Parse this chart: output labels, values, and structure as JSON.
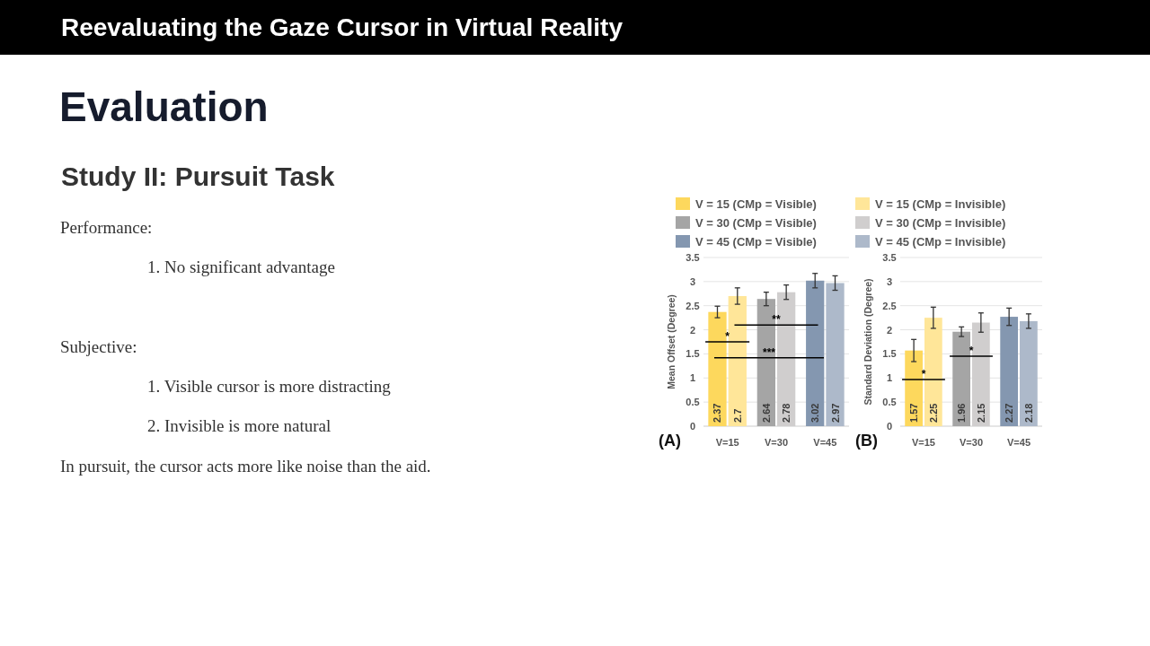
{
  "chart_data": [
    {
      "type": "other",
      "title": "Reevaluating the Gaze Cursor in Virtual Reality",
      "subtitle": "Evaluation",
      "annotations": [
        "Study II: Pursuit Task",
        "Performance:",
        "1. No significant advantage",
        "Subjective:",
        "1. Visible cursor is more distracting",
        "2. Invisible is more natural",
        "In pursuit, the cursor acts more like noise than the aid."
      ]
    },
    {
      "type": "bar",
      "ylabel": "Mean Offset (Degree)",
      "categories": [
        "V=15",
        "V=30",
        "V=45"
      ],
      "ylim": [
        0,
        3.5
      ],
      "yticks": [
        0,
        0.5,
        1,
        1.5,
        2,
        2.5,
        3,
        3.5
      ],
      "grid": "y",
      "legend": "top",
      "data_labels": true,
      "series": [
        {
          "name": "V = 15 (CMp = Visible)",
          "color": "#fdd85d",
          "values": [
            2.37,
            null,
            null
          ],
          "errors": [
            0.12,
            null,
            null
          ]
        },
        {
          "name": "V = 15 (CMp = Invisible)",
          "color": "#ffe699",
          "values": [
            2.7,
            null,
            null
          ],
          "errors": [
            0.17,
            null,
            null
          ]
        },
        {
          "name": "V = 30 (CMp = Visible)",
          "color": "#a5a5a5",
          "values": [
            null,
            2.64,
            null
          ],
          "errors": [
            null,
            0.14,
            null
          ]
        },
        {
          "name": "V = 30 (CMp = Invisible)",
          "color": "#d0cece",
          "values": [
            null,
            2.78,
            null
          ],
          "errors": [
            null,
            0.15,
            null
          ]
        },
        {
          "name": "V = 45 (CMp = Visible)",
          "color": "#8497b0",
          "values": [
            null,
            null,
            3.02
          ],
          "errors": [
            null,
            null,
            0.15
          ]
        },
        {
          "name": "V = 45 (CMp = Invisible)",
          "color": "#adb9ca",
          "values": [
            null,
            null,
            2.97
          ],
          "errors": [
            null,
            null,
            0.15
          ]
        }
      ],
      "ref_lines": [
        {
          "axis": "y",
          "value": 1.42,
          "label": "***",
          "color": "#000000"
        }
      ],
      "annotations": [
        "(A)",
        {
          "text": "*",
          "x": "V=15",
          "y": 1.75
        },
        {
          "text": "**",
          "x": "V=30",
          "y": 2.1
        }
      ]
    },
    {
      "type": "bar",
      "ylabel": "Standard Deviation (Degree)",
      "categories": [
        "V=15",
        "V=30",
        "V=45"
      ],
      "ylim": [
        0,
        3.5
      ],
      "yticks": [
        0,
        0.5,
        1,
        1.5,
        2,
        2.5,
        3,
        3.5
      ],
      "grid": "y",
      "data_labels": true,
      "series": [
        {
          "color": "#fdd85d",
          "values": [
            1.57,
            null,
            null
          ],
          "errors": [
            0.23,
            null,
            null
          ]
        },
        {
          "color": "#ffe699",
          "values": [
            2.25,
            null,
            null
          ],
          "errors": [
            0.22,
            null,
            null
          ]
        },
        {
          "color": "#a5a5a5",
          "values": [
            null,
            1.96,
            null
          ],
          "errors": [
            null,
            0.1,
            null
          ]
        },
        {
          "color": "#d0cece",
          "values": [
            null,
            2.15,
            null
          ],
          "errors": [
            null,
            0.2,
            null
          ]
        },
        {
          "color": "#8497b0",
          "values": [
            null,
            null,
            2.27
          ],
          "errors": [
            null,
            null,
            0.18
          ]
        },
        {
          "color": "#adb9ca",
          "values": [
            null,
            null,
            2.18
          ],
          "errors": [
            null,
            null,
            0.15
          ]
        }
      ],
      "annotations": [
        "(B)",
        {
          "text": "*",
          "x": "V=15",
          "y": 0.97
        },
        {
          "text": "*",
          "x": "V=30",
          "y": 1.45
        }
      ]
    }
  ]
}
